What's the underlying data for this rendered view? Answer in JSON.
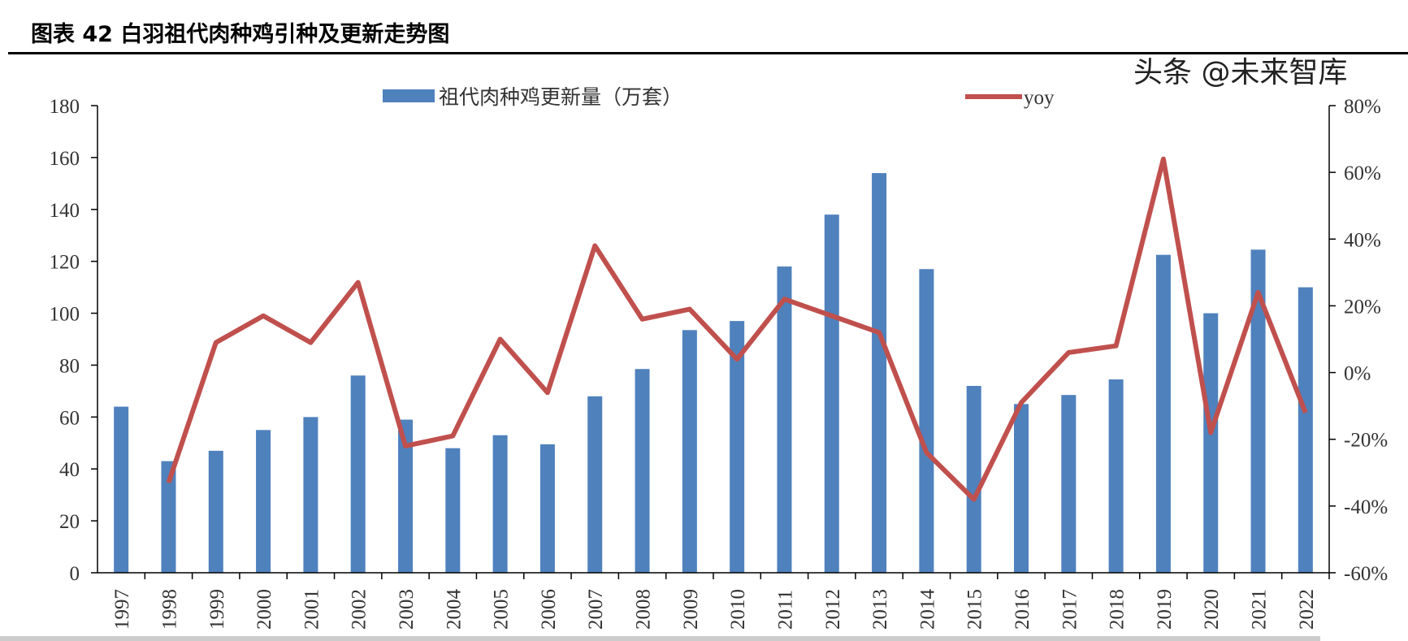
{
  "title": "图表 42  白羽祖代肉种鸡引种及更新走势图",
  "watermark": "头条 @未来智库",
  "chart_data": {
    "type": "bar+line",
    "categories": [
      "1997",
      "1998",
      "1999",
      "2000",
      "2001",
      "2002",
      "2003",
      "2004",
      "2005",
      "2006",
      "2007",
      "2008",
      "2009",
      "2010",
      "2011",
      "2012",
      "2013",
      "2014",
      "2015",
      "2016",
      "2017",
      "2018",
      "2019",
      "2020",
      "2021",
      "2022"
    ],
    "series": [
      {
        "name": "祖代肉种鸡更新量（万套）",
        "type": "bar",
        "axis": "left",
        "color": "#4F81BD",
        "values": [
          64,
          43,
          47,
          55,
          60,
          76,
          59,
          48,
          53,
          49.5,
          68,
          78.5,
          93.5,
          97,
          118,
          138,
          154,
          117,
          72,
          65,
          68.5,
          74.5,
          122.5,
          100,
          124.5,
          110
        ]
      },
      {
        "name": "yoy",
        "type": "line",
        "axis": "right",
        "color": "#C0504D",
        "values": [
          null,
          -33,
          9,
          17,
          9,
          27,
          -22,
          -19,
          10,
          -6,
          38,
          16,
          19,
          4,
          22,
          17,
          12,
          -24,
          -38,
          -9,
          6,
          8,
          64,
          -18,
          24,
          -12
        ]
      }
    ],
    "y_left": {
      "min": 0,
      "max": 180,
      "ticks": [
        "0",
        "20",
        "40",
        "60",
        "80",
        "100",
        "120",
        "140",
        "160",
        "180"
      ]
    },
    "y_right": {
      "min": -60,
      "max": 80,
      "ticks": [
        "-60%",
        "-40%",
        "-20%",
        "0%",
        "20%",
        "40%",
        "60%",
        "80%"
      ]
    },
    "legend_placement": "top",
    "grid": false
  }
}
